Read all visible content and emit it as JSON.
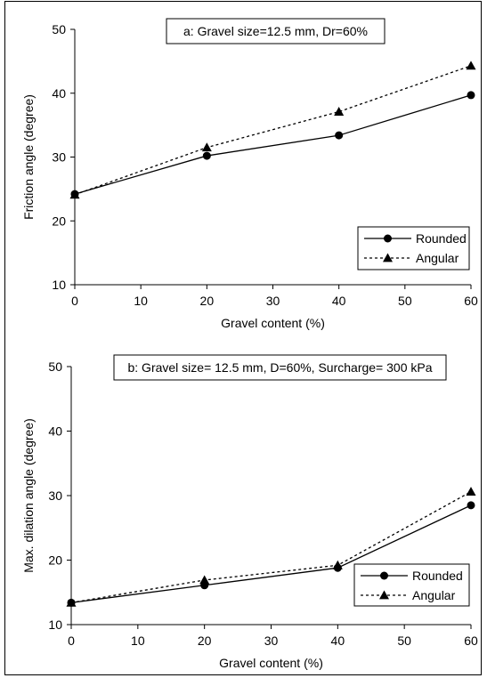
{
  "chart_data": [
    {
      "type": "line",
      "title": "a: Gravel size=12.5 mm, Dr=60%",
      "xlabel": "Gravel content (%)",
      "ylabel": "Friction angle  (degree)",
      "xlim": [
        0,
        60
      ],
      "ylim": [
        10,
        50
      ],
      "xticks": [
        0,
        10,
        20,
        30,
        40,
        50,
        60
      ],
      "yticks": [
        10,
        20,
        30,
        40,
        50
      ],
      "grid": false,
      "legend_position": "bottom-right",
      "series": [
        {
          "name": "Rounded",
          "style": "solid",
          "marker": "circle",
          "x": [
            0,
            20,
            40,
            60
          ],
          "y": [
            24.2,
            30.2,
            33.4,
            39.7
          ]
        },
        {
          "name": "Angular",
          "style": "dotted",
          "marker": "triangle",
          "x": [
            0,
            20,
            40,
            60
          ],
          "y": [
            24.1,
            31.5,
            37.1,
            44.3
          ]
        }
      ]
    },
    {
      "type": "line",
      "title": "b: Gravel size= 12.5 mm, D=60%, Surcharge= 300 kPa",
      "xlabel": "Gravel content (%)",
      "ylabel": "Max. dilation angle (degree)",
      "xlim": [
        0,
        60
      ],
      "ylim": [
        10,
        50
      ],
      "xticks": [
        0,
        10,
        20,
        30,
        40,
        50,
        60
      ],
      "yticks": [
        10,
        20,
        30,
        40,
        50
      ],
      "grid": false,
      "legend_position": "bottom-right",
      "series": [
        {
          "name": "Rounded",
          "style": "solid",
          "marker": "circle",
          "x": [
            0,
            20,
            40,
            60
          ],
          "y": [
            13.4,
            16.1,
            18.8,
            28.5
          ]
        },
        {
          "name": "Angular",
          "style": "dotted",
          "marker": "triangle",
          "x": [
            0,
            20,
            40,
            60
          ],
          "y": [
            13.4,
            16.9,
            19.2,
            30.6
          ]
        }
      ]
    }
  ]
}
